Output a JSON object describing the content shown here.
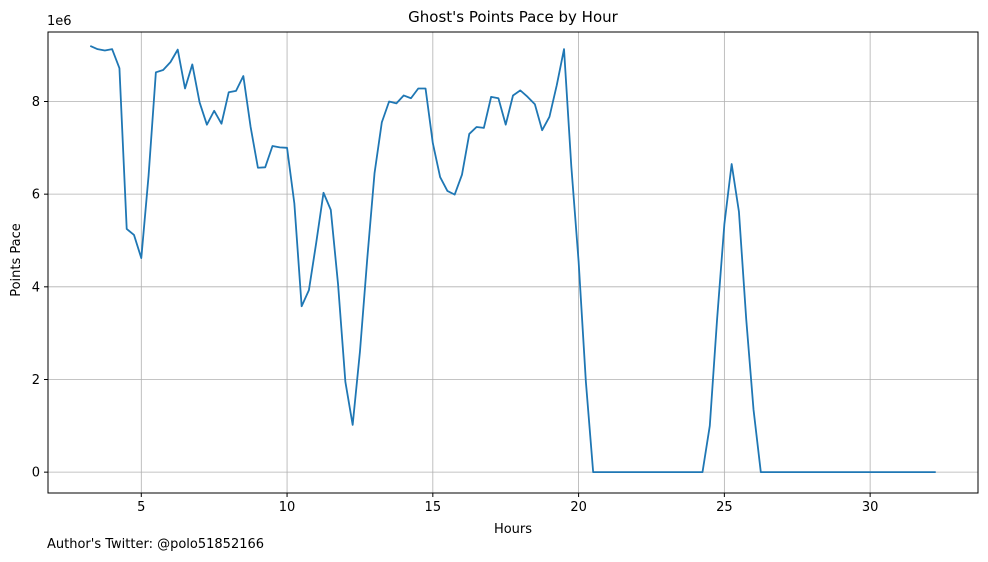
{
  "chart_data": {
    "type": "line",
    "title": "Ghost's Points Pace by Hour",
    "xlabel": "Hours",
    "ylabel": "Points Pace",
    "y_scale_label": "1e6",
    "xlim": [
      1.8,
      33.7
    ],
    "ylim": [
      -0.45,
      9.5
    ],
    "y_unit": "millions",
    "xticks": [
      5,
      10,
      15,
      20,
      25,
      30
    ],
    "yticks": [
      0,
      2,
      4,
      6,
      8
    ],
    "grid": true,
    "line_color": "#1f77b4",
    "series": [
      {
        "x": [
          3.25,
          3.5,
          3.75,
          4.0,
          4.25,
          4.5,
          4.75,
          5.0,
          5.25,
          5.5,
          5.75,
          6.0,
          6.25,
          6.5,
          6.75,
          7.0,
          7.25,
          7.5,
          7.75,
          8.0,
          8.25,
          8.5,
          8.75,
          9.0,
          9.25,
          9.5,
          9.75,
          10.0,
          10.25,
          10.5,
          10.75,
          11.0,
          11.25,
          11.5,
          11.75,
          12.0,
          12.25,
          12.5,
          12.75,
          13.0,
          13.25,
          13.5,
          13.75,
          14.0,
          14.25,
          14.5,
          14.75,
          15.0,
          15.25,
          15.5,
          15.75,
          16.0,
          16.25,
          16.5,
          16.75,
          17.0,
          17.25,
          17.5,
          17.75,
          18.0,
          18.25,
          18.5,
          18.75,
          19.0,
          19.25,
          19.5,
          19.75,
          20.0,
          20.25,
          20.5,
          24.25,
          24.5,
          24.75,
          25.0,
          25.25,
          25.5,
          25.75,
          26.0,
          26.25,
          32.25
        ],
        "y": [
          9.2,
          9.13,
          9.1,
          9.13,
          8.72,
          5.25,
          5.12,
          4.62,
          6.4,
          8.63,
          8.68,
          8.85,
          9.12,
          8.28,
          8.8,
          7.98,
          7.5,
          7.8,
          7.52,
          8.2,
          8.23,
          8.55,
          7.45,
          6.57,
          6.58,
          7.04,
          7.01,
          7.0,
          5.8,
          3.58,
          3.93,
          4.95,
          6.03,
          5.66,
          4.05,
          1.95,
          1.02,
          2.6,
          4.6,
          6.45,
          7.55,
          8.0,
          7.96,
          8.13,
          8.07,
          8.28,
          8.28,
          7.1,
          6.37,
          6.07,
          5.99,
          6.42,
          7.3,
          7.45,
          7.43,
          8.1,
          8.07,
          7.5,
          8.13,
          8.24,
          8.1,
          7.94,
          7.38,
          7.67,
          8.35,
          9.13,
          6.6,
          4.55,
          1.95,
          0.0,
          0.0,
          1.0,
          3.3,
          5.35,
          6.65,
          5.62,
          3.3,
          1.35,
          0.0,
          0.0
        ]
      }
    ]
  },
  "footer": {
    "author_note": "Author's Twitter: @polo51852166"
  }
}
